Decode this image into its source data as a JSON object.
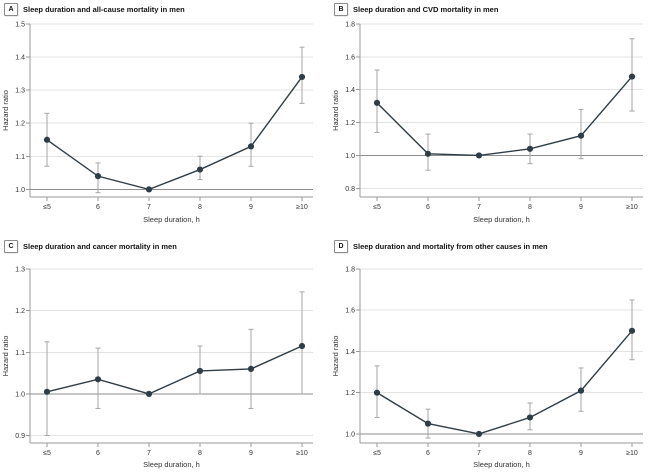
{
  "figure": {
    "panels": [
      {
        "label": "A",
        "title": "Sleep duration and all-cause mortality in men"
      },
      {
        "label": "B",
        "title": "Sleep duration and CVD mortality in men"
      },
      {
        "label": "C",
        "title": "Sleep duration and cancer mortality in men"
      },
      {
        "label": "D",
        "title": "Sleep duration and mortality from other causes in men"
      }
    ]
  },
  "colors": {
    "series": "#2f3e46",
    "error_bar": "#a5a5a5",
    "gridline": "#e3e3e3",
    "reference_line": "#8d8d8d",
    "axis": "#9a9a9a",
    "tick_label": "#333333",
    "axis_label": "#333333"
  },
  "chart_data": [
    {
      "type": "line",
      "title": "Sleep duration and all-cause mortality in men",
      "xlabel": "Sleep duration, h",
      "ylabel": "Hazard ratio",
      "categories": [
        "≤5",
        "6",
        "7",
        "8",
        "9",
        "≥10"
      ],
      "series": [
        {
          "name": "Hazard ratio (95% CI)",
          "values": [
            1.15,
            1.04,
            1.0,
            1.06,
            1.13,
            1.34
          ],
          "ci_low": [
            1.07,
            0.99,
            null,
            1.03,
            1.07,
            1.26
          ],
          "ci_high": [
            1.23,
            1.08,
            null,
            1.1,
            1.2,
            1.43
          ]
        }
      ],
      "yticks": [
        1.0,
        1.1,
        1.2,
        1.3,
        1.4,
        1.5
      ],
      "ylim": [
        0.977,
        1.5
      ],
      "reference_y": 1.0,
      "grid": true,
      "legend": "none"
    },
    {
      "type": "line",
      "title": "Sleep duration and CVD mortality in men",
      "xlabel": "Sleep duration, h",
      "ylabel": "Hazard ratio",
      "categories": [
        "≤5",
        "6",
        "7",
        "8",
        "9",
        "≥10"
      ],
      "series": [
        {
          "name": "Hazard ratio (95% CI)",
          "values": [
            1.32,
            1.01,
            1.0,
            1.04,
            1.12,
            1.48
          ],
          "ci_low": [
            1.14,
            0.91,
            null,
            0.95,
            0.98,
            1.27
          ],
          "ci_high": [
            1.52,
            1.13,
            null,
            1.13,
            1.28,
            1.71
          ]
        }
      ],
      "yticks": [
        0.8,
        1.0,
        1.2,
        1.4,
        1.6,
        1.8
      ],
      "ylim": [
        0.747,
        1.8
      ],
      "reference_y": 1.0,
      "grid": true,
      "legend": "none"
    },
    {
      "type": "line",
      "title": "Sleep duration and cancer mortality in men",
      "xlabel": "Sleep duration, h",
      "ylabel": "Hazard ratio",
      "categories": [
        "≤5",
        "6",
        "7",
        "8",
        "9",
        "≥10"
      ],
      "series": [
        {
          "name": "Hazard ratio (95% CI)",
          "values": [
            1.005,
            1.035,
            1.0,
            1.055,
            1.06,
            1.115
          ],
          "ci_low": [
            0.9,
            0.965,
            null,
            1.0,
            0.965,
            1.0
          ],
          "ci_high": [
            1.125,
            1.11,
            null,
            1.115,
            1.155,
            1.245
          ]
        }
      ],
      "yticks": [
        0.9,
        1.0,
        1.1,
        1.2,
        1.3
      ],
      "ylim": [
        0.882,
        1.3
      ],
      "reference_y": 1.0,
      "grid": true,
      "legend": "none"
    },
    {
      "type": "line",
      "title": "Sleep duration and mortality from other causes in men",
      "xlabel": "Sleep duration, h",
      "ylabel": "Hazard ratio",
      "categories": [
        "≤5",
        "6",
        "7",
        "8",
        "9",
        "≥10"
      ],
      "series": [
        {
          "name": "Hazard ratio (95% CI)",
          "values": [
            1.2,
            1.05,
            1.0,
            1.08,
            1.21,
            1.5
          ],
          "ci_low": [
            1.08,
            0.98,
            null,
            1.02,
            1.11,
            1.36
          ],
          "ci_high": [
            1.33,
            1.12,
            null,
            1.15,
            1.32,
            1.65
          ]
        }
      ],
      "yticks": [
        1.0,
        1.2,
        1.4,
        1.6,
        1.8
      ],
      "ylim": [
        0.956,
        1.8
      ],
      "reference_y": 1.0,
      "grid": true,
      "legend": "none"
    }
  ]
}
